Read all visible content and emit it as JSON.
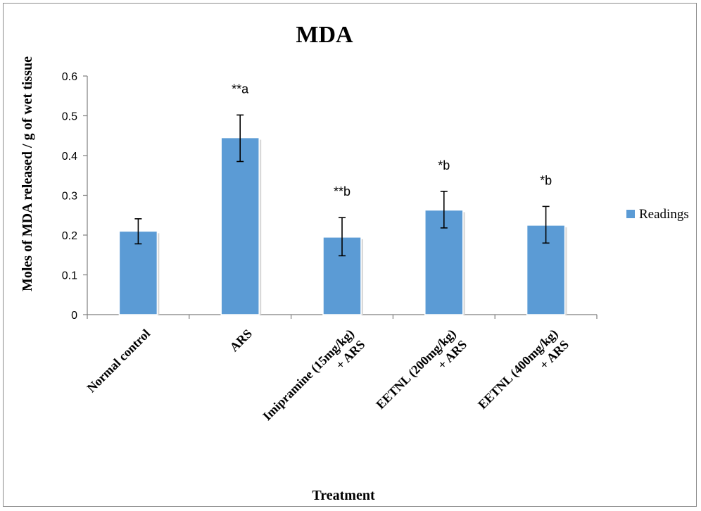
{
  "chart_data": {
    "type": "bar",
    "title": "MDA",
    "xlabel": "Treatment",
    "ylabel": "Moles of MDA released / g of wet tissue",
    "categories": [
      [
        "Normal control"
      ],
      [
        "ARS"
      ],
      [
        "Imipramine (15mg/kg)",
        "+ ARS"
      ],
      [
        "EETNL (200mg/kg)",
        "+ ARS"
      ],
      [
        "EETNL (400mg/kg)",
        "+ ARS"
      ]
    ],
    "series": [
      {
        "name": "Readings",
        "values": [
          0.21,
          0.445,
          0.195,
          0.263,
          0.225
        ],
        "error_low": [
          0.178,
          0.385,
          0.148,
          0.218,
          0.18
        ],
        "error_high": [
          0.241,
          0.502,
          0.244,
          0.31,
          0.272
        ],
        "color": "#5b9bd5"
      }
    ],
    "annotations": [
      "",
      "**a",
      "**b",
      "*b",
      "*b"
    ],
    "ylim": [
      0,
      0.6
    ],
    "yticks": [
      "0",
      "0.1",
      "0.2",
      "0.3",
      "0.4",
      "0.5",
      "0.6"
    ],
    "grid": false,
    "legend_position": "right"
  }
}
